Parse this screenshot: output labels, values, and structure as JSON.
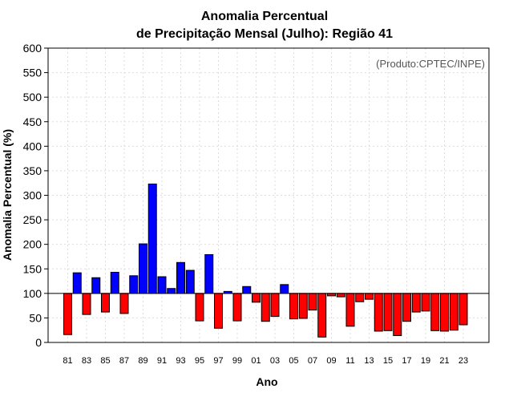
{
  "chart_data": {
    "type": "bar",
    "title_line1": "Anomalia Percentual",
    "title_line2": "de Precipitação Mensal (Julho): Região 41",
    "credit": "(Produto:CPTEC/INPE)",
    "xlabel": "Ano",
    "ylabel": "Anomalia Percentual (%)",
    "ylim": [
      0,
      600
    ],
    "yticks": [
      0,
      50,
      100,
      150,
      200,
      250,
      300,
      350,
      400,
      450,
      500,
      550,
      600
    ],
    "baseline": 100,
    "grid": true,
    "colors": {
      "above": "#0000ff",
      "below": "#ff0000",
      "grid": "#dddddd",
      "axis": "#000000"
    },
    "categories": [
      "81",
      "82",
      "83",
      "84",
      "85",
      "86",
      "87",
      "88",
      "89",
      "90",
      "91",
      "92",
      "93",
      "94",
      "95",
      "96",
      "97",
      "98",
      "99",
      "00",
      "01",
      "02",
      "03",
      "04",
      "05",
      "06",
      "07",
      "08",
      "09",
      "10",
      "11",
      "12",
      "13",
      "14",
      "15",
      "16",
      "17",
      "18",
      "19",
      "20",
      "21",
      "22",
      "23"
    ],
    "tick_labels": [
      "81",
      "83",
      "85",
      "87",
      "89",
      "91",
      "93",
      "95",
      "97",
      "99",
      "01",
      "03",
      "05",
      "07",
      "09",
      "11",
      "13",
      "15",
      "17",
      "19",
      "21",
      "23"
    ],
    "values": [
      16,
      142,
      57,
      132,
      62,
      143,
      59,
      136,
      201,
      323,
      134,
      110,
      163,
      147,
      44,
      179,
      29,
      104,
      44,
      114,
      82,
      43,
      53,
      118,
      48,
      49,
      66,
      11,
      95,
      93,
      33,
      83,
      88,
      23,
      24,
      14,
      43,
      62,
      64,
      24,
      23,
      25,
      36
    ]
  }
}
